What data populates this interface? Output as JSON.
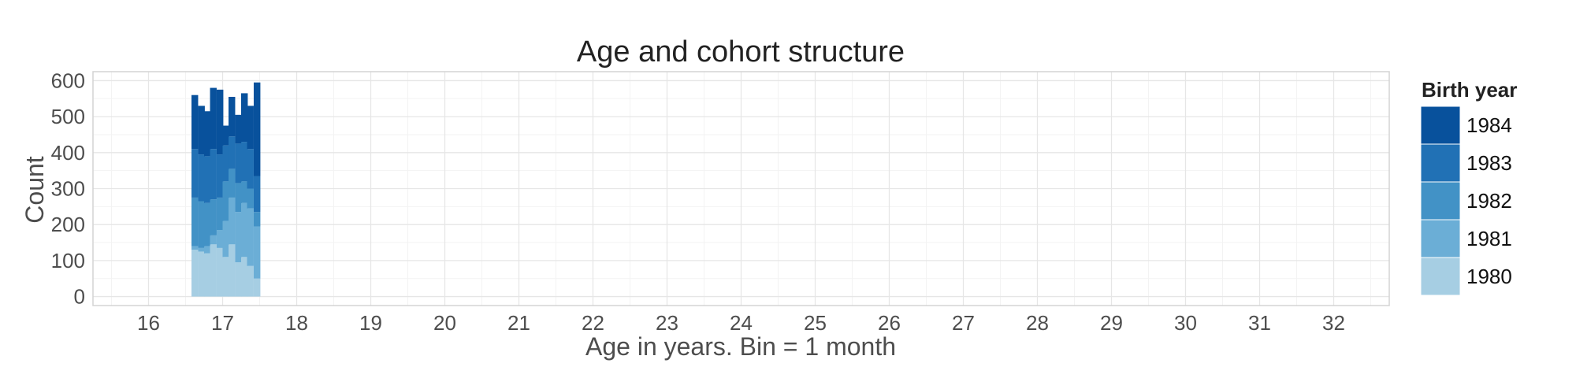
{
  "chart_data": {
    "type": "histogram-stacked",
    "title": "Age and cohort structure",
    "xlabel": "Age in years. Bin = 1 month",
    "ylabel": "Count",
    "xlim": [
      15.25,
      32.75
    ],
    "ylim": [
      -25,
      625
    ],
    "x_ticks": [
      "16",
      "17",
      "18",
      "19",
      "20",
      "21",
      "22",
      "23",
      "24",
      "25",
      "26",
      "27",
      "28",
      "29",
      "30",
      "31",
      "32"
    ],
    "y_ticks": [
      "0",
      "100",
      "200",
      "300",
      "400",
      "500",
      "600"
    ],
    "grid": true,
    "legend": {
      "title": "Birth year",
      "position": "right"
    },
    "bin_width_years": 0.0833,
    "bin_starts": [
      16.58,
      16.67,
      16.75,
      16.83,
      16.92,
      17.0,
      17.08,
      17.17,
      17.25,
      17.33,
      17.42
    ],
    "series": [
      {
        "name": "1980",
        "color": "#a6cee3",
        "values": [
          130,
          125,
          120,
          145,
          135,
          110,
          145,
          95,
          110,
          85,
          50
        ]
      },
      {
        "name": "1981",
        "color": "#6baed6",
        "values": [
          10,
          10,
          20,
          25,
          50,
          100,
          130,
          140,
          150,
          160,
          145
        ]
      },
      {
        "name": "1982",
        "color": "#4292c6",
        "values": [
          135,
          130,
          120,
          100,
          90,
          110,
          80,
          80,
          60,
          55,
          40
        ]
      },
      {
        "name": "1983",
        "color": "#2171b5",
        "values": [
          135,
          130,
          130,
          140,
          120,
          100,
          90,
          110,
          110,
          110,
          100
        ]
      },
      {
        "name": "1984",
        "color": "#08519c",
        "values": [
          150,
          135,
          125,
          170,
          180,
          55,
          110,
          80,
          135,
          120,
          260
        ]
      }
    ]
  }
}
